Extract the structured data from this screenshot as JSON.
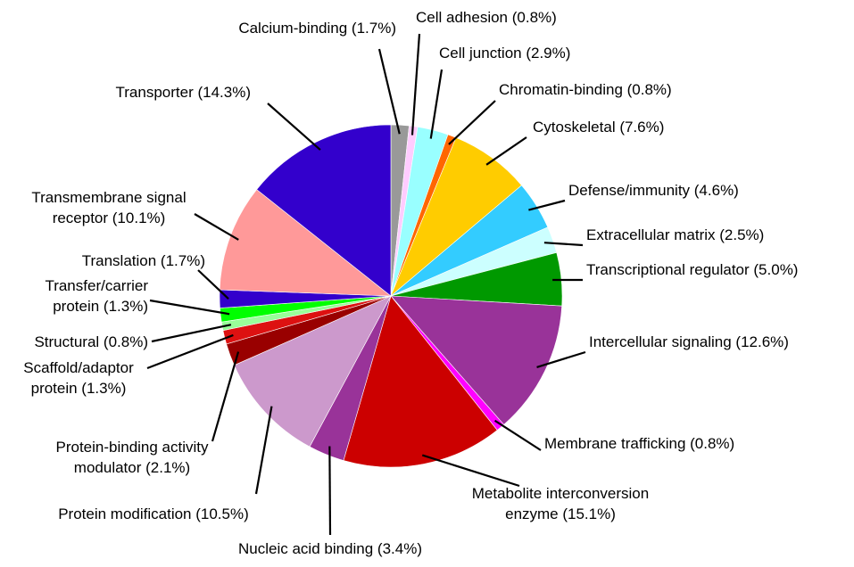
{
  "chart_data": {
    "type": "pie",
    "start_angle": "top",
    "direction": "clockwise",
    "legend": "none",
    "slices": [
      {
        "label": "Calcium-binding (1.7%)",
        "value": 1.7,
        "color": "#999999",
        "lines": [
          "Calcium-binding (1.7%)"
        ]
      },
      {
        "label": "Cell adhesion (0.8%)",
        "value": 0.8,
        "color": "#ffccff",
        "lines": [
          "Cell adhesion (0.8%)"
        ]
      },
      {
        "label": "Cell junction (2.9%)",
        "value": 2.9,
        "color": "#99ffff",
        "lines": [
          "Cell junction (2.9%)"
        ]
      },
      {
        "label": "Chromatin-binding (0.8%)",
        "value": 0.8,
        "color": "#ff6600",
        "lines": [
          "Chromatin-binding (0.8%)"
        ]
      },
      {
        "label": "Cytoskeletal (7.6%)",
        "value": 7.6,
        "color": "#ffcc00",
        "lines": [
          "Cytoskeletal (7.6%)"
        ]
      },
      {
        "label": "Defense/immunity (4.6%)",
        "value": 4.6,
        "color": "#33ccff",
        "lines": [
          "Defense/immunity (4.6%)"
        ]
      },
      {
        "label": "Extracellular matrix (2.5%)",
        "value": 2.5,
        "color": "#ccffff",
        "lines": [
          "Extracellular matrix (2.5%)"
        ]
      },
      {
        "label": "Transcriptional regulator (5.0%)",
        "value": 5.0,
        "color": "#009900",
        "lines": [
          "Transcriptional regulator (5.0%)"
        ]
      },
      {
        "label": "Intercellular signaling (12.6%)",
        "value": 12.6,
        "color": "#993399",
        "lines": [
          "Intercellular signaling (12.6%)"
        ]
      },
      {
        "label": "Membrane trafficking (0.8%)",
        "value": 0.8,
        "color": "#ff00ff",
        "lines": [
          "Membrane trafficking (0.8%)"
        ]
      },
      {
        "label": "Metabolite interconversion enzyme (15.1%)",
        "value": 15.1,
        "color": "#cc0000",
        "lines": [
          "Metabolite interconversion",
          "enzyme (15.1%)"
        ]
      },
      {
        "label": "Nucleic acid binding (3.4%)",
        "value": 3.4,
        "color": "#993399",
        "lines": [
          "Nucleic acid binding (3.4%)"
        ]
      },
      {
        "label": "Protein modification (10.5%)",
        "value": 10.5,
        "color": "#cc99cc",
        "lines": [
          "Protein modification (10.5%)"
        ]
      },
      {
        "label": "Protein-binding activity modulator (2.1%)",
        "value": 2.1,
        "color": "#990000",
        "lines": [
          "Protein-binding activity",
          "modulator (2.1%)"
        ]
      },
      {
        "label": "Scaffold/adaptor protein (1.3%)",
        "value": 1.3,
        "color": "#dd1111",
        "lines": [
          "Scaffold/adaptor",
          "protein (1.3%)"
        ]
      },
      {
        "label": "Structural (0.8%)",
        "value": 0.8,
        "color": "#99ff99",
        "lines": [
          "Structural (0.8%)"
        ]
      },
      {
        "label": "Transfer/carrier protein (1.3%)",
        "value": 1.3,
        "color": "#00ff00",
        "lines": [
          "Transfer/carrier",
          "protein (1.3%)"
        ]
      },
      {
        "label": "Translation (1.7%)",
        "value": 1.7,
        "color": "#3300cc",
        "lines": [
          "Translation (1.7%)"
        ]
      },
      {
        "label": "Transmembrane signal receptor (10.1%)",
        "value": 10.1,
        "color": "#ff9999",
        "lines": [
          "Transmembrane signal",
          "receptor (10.1%)"
        ]
      },
      {
        "label": "Transporter (14.3%)",
        "value": 14.3,
        "color": "#3300cc",
        "lines": [
          "Transporter (14.3%)"
        ]
      }
    ]
  }
}
